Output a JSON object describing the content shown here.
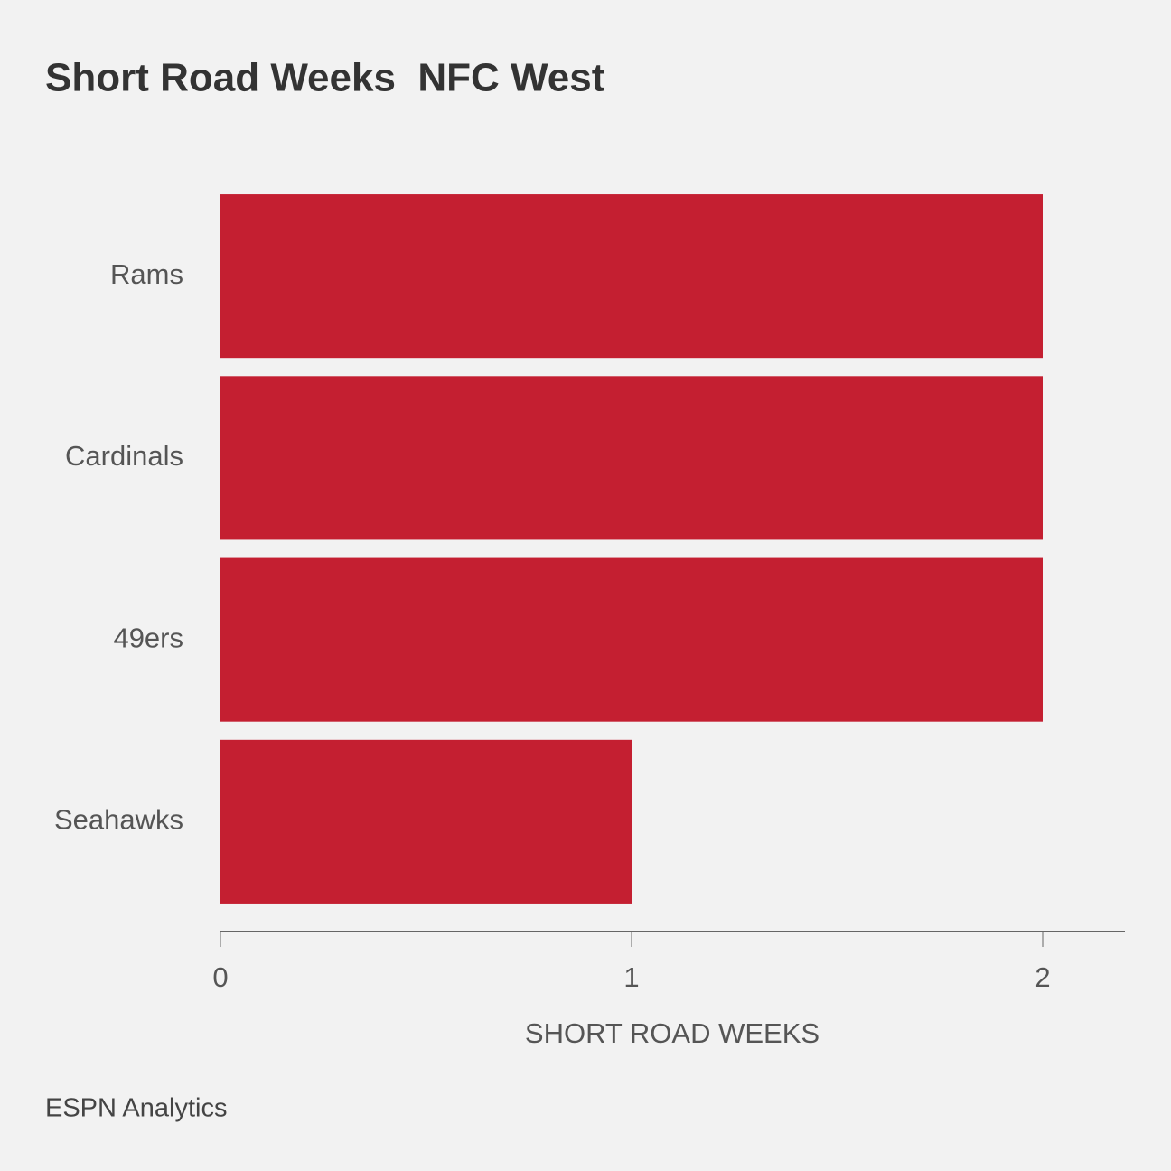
{
  "chart_data": {
    "type": "bar",
    "orientation": "horizontal",
    "title": "Short Road Weeks  NFC West",
    "categories": [
      "Rams",
      "Cardinals",
      "49ers",
      "Seahawks"
    ],
    "values": [
      2,
      2,
      2,
      1
    ],
    "color": "#c41f31",
    "xlabel": "SHORT ROAD WEEKS",
    "xlim": [
      0,
      2.2
    ],
    "xticks": [
      0,
      1,
      2
    ],
    "source": "ESPN Analytics"
  }
}
